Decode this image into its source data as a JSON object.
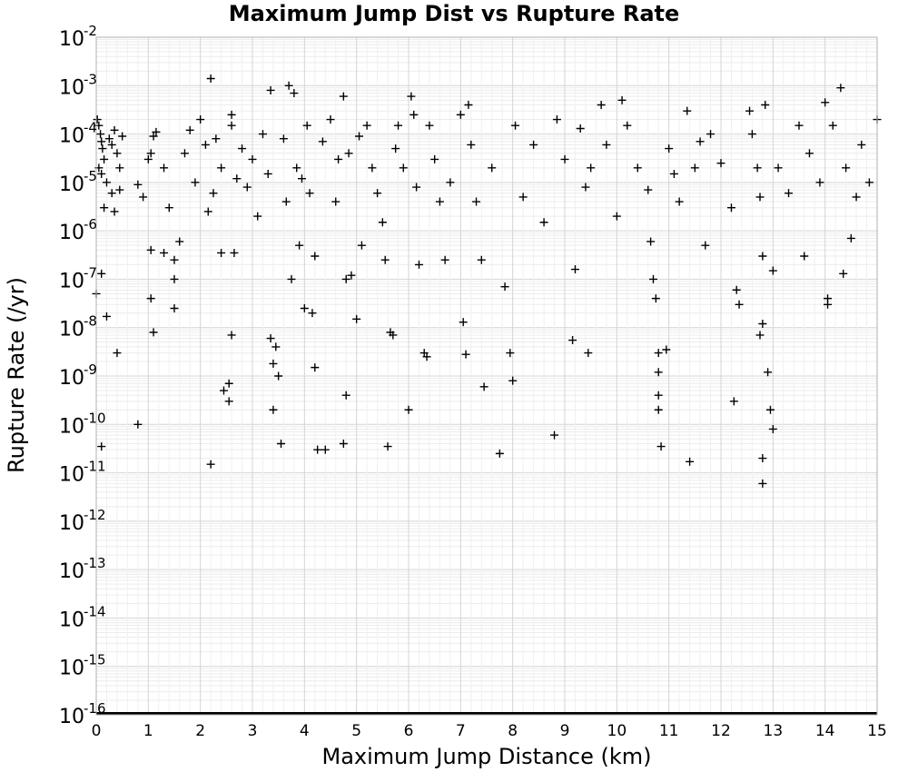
{
  "chart_data": {
    "type": "scatter",
    "title": "Maximum Jump Dist vs Rupture Rate",
    "xlabel": "Maximum Jump Distance (km)",
    "ylabel": "Rupture Rate (/yr)",
    "xlim": [
      0,
      15
    ],
    "ylim": [
      1e-16,
      0.01
    ],
    "yscale": "log",
    "grid": true,
    "marker": "plus",
    "marker_color": "#000000",
    "x_ticks": [
      "0",
      "1",
      "2",
      "3",
      "4",
      "5",
      "6",
      "7",
      "8",
      "9",
      "10",
      "11",
      "12",
      "13",
      "14",
      "15"
    ],
    "y_ticks": [
      {
        "base": "10",
        "exp": "-2"
      },
      {
        "base": "10",
        "exp": "-3"
      },
      {
        "base": "10",
        "exp": "-4"
      },
      {
        "base": "10",
        "exp": "-5"
      },
      {
        "base": "10",
        "exp": "-6"
      },
      {
        "base": "10",
        "exp": "-7"
      },
      {
        "base": "10",
        "exp": "-8"
      },
      {
        "base": "10",
        "exp": "-9"
      },
      {
        "base": "10",
        "exp": "-10"
      },
      {
        "base": "10",
        "exp": "-11"
      },
      {
        "base": "10",
        "exp": "-12"
      },
      {
        "base": "10",
        "exp": "-13"
      },
      {
        "base": "10",
        "exp": "-14"
      },
      {
        "base": "10",
        "exp": "-15"
      },
      {
        "base": "10",
        "exp": "-16"
      }
    ],
    "points": [
      [
        0.02,
        0.0002
      ],
      [
        0.05,
        0.00015
      ],
      [
        0.08,
        0.0001
      ],
      [
        0.1,
        7e-05
      ],
      [
        0.12,
        5e-05
      ],
      [
        0.15,
        3e-05
      ],
      [
        0.05,
        2e-05
      ],
      [
        0.1,
        1.5e-05
      ],
      [
        0.2,
        1e-05
      ],
      [
        0.25,
        8e-05
      ],
      [
        0.3,
        6e-05
      ],
      [
        0.35,
        0.00012
      ],
      [
        0.4,
        4e-05
      ],
      [
        0.45,
        2e-05
      ],
      [
        0.5,
        9e-05
      ],
      [
        0.0,
        5e-08
      ],
      [
        0.1,
        1.3e-07
      ],
      [
        0.2,
        1.7e-08
      ],
      [
        0.4,
        3e-09
      ],
      [
        0.1,
        3.5e-11
      ],
      [
        0.3,
        6e-06
      ],
      [
        0.45,
        7e-06
      ],
      [
        0.15,
        3e-06
      ],
      [
        0.35,
        2.5e-06
      ],
      [
        0.8,
        9e-06
      ],
      [
        0.9,
        5e-06
      ],
      [
        1.0,
        3e-05
      ],
      [
        1.05,
        4e-05
      ],
      [
        1.1,
        9e-05
      ],
      [
        1.15,
        0.00011
      ],
      [
        1.1,
        8e-09
      ],
      [
        1.05,
        4e-08
      ],
      [
        1.05,
        4e-07
      ],
      [
        0.8,
        1e-10
      ],
      [
        1.3,
        2e-05
      ],
      [
        1.4,
        3e-06
      ],
      [
        1.3,
        3.5e-07
      ],
      [
        1.5,
        2.5e-07
      ],
      [
        1.5,
        1e-07
      ],
      [
        1.5,
        2.5e-08
      ],
      [
        1.6,
        6e-07
      ],
      [
        1.7,
        4e-05
      ],
      [
        1.8,
        0.00012
      ],
      [
        1.9,
        1e-05
      ],
      [
        2.0,
        0.0002
      ],
      [
        2.1,
        6e-05
      ],
      [
        2.15,
        2.5e-06
      ],
      [
        2.2,
        0.0014
      ],
      [
        2.25,
        6e-06
      ],
      [
        2.3,
        8e-05
      ],
      [
        2.2,
        1.5e-11
      ],
      [
        2.4,
        3.5e-07
      ],
      [
        2.4,
        2e-05
      ],
      [
        2.45,
        5e-10
      ],
      [
        2.55,
        7e-10
      ],
      [
        2.55,
        3e-10
      ],
      [
        2.6,
        7e-09
      ],
      [
        2.6,
        0.00025
      ],
      [
        2.6,
        0.00015
      ],
      [
        2.65,
        3.5e-07
      ],
      [
        2.7,
        1.2e-05
      ],
      [
        2.8,
        5e-05
      ],
      [
        2.9,
        8e-06
      ],
      [
        3.0,
        3e-05
      ],
      [
        3.1,
        2e-06
      ],
      [
        3.2,
        0.0001
      ],
      [
        3.3,
        1.5e-05
      ],
      [
        3.35,
        0.0008
      ],
      [
        3.35,
        6e-09
      ],
      [
        3.4,
        1.8e-09
      ],
      [
        3.4,
        2e-10
      ],
      [
        3.45,
        4e-09
      ],
      [
        3.5,
        1e-09
      ],
      [
        3.55,
        4e-11
      ],
      [
        3.6,
        8e-05
      ],
      [
        3.65,
        4e-06
      ],
      [
        3.7,
        0.001
      ],
      [
        3.75,
        1e-07
      ],
      [
        3.8,
        0.0007
      ],
      [
        3.85,
        2e-05
      ],
      [
        3.9,
        5e-07
      ],
      [
        3.95,
        1.2e-05
      ],
      [
        4.0,
        2.5e-08
      ],
      [
        4.05,
        0.00015
      ],
      [
        4.1,
        6e-06
      ],
      [
        4.15,
        2e-08
      ],
      [
        4.2,
        3e-07
      ],
      [
        4.2,
        1.5e-09
      ],
      [
        4.25,
        3e-11
      ],
      [
        4.4,
        3e-11
      ],
      [
        4.35,
        7e-05
      ],
      [
        4.5,
        0.0002
      ],
      [
        4.6,
        4e-06
      ],
      [
        4.65,
        3e-05
      ],
      [
        4.75,
        0.0006
      ],
      [
        4.8,
        4e-10
      ],
      [
        4.75,
        4e-11
      ],
      [
        4.8,
        1e-07
      ],
      [
        4.85,
        4e-05
      ],
      [
        4.9,
        1.2e-07
      ],
      [
        5.0,
        1.5e-08
      ],
      [
        5.05,
        9e-05
      ],
      [
        5.1,
        5e-07
      ],
      [
        5.2,
        0.00015
      ],
      [
        5.3,
        2e-05
      ],
      [
        5.4,
        6e-06
      ],
      [
        5.5,
        1.5e-06
      ],
      [
        5.55,
        2.5e-07
      ],
      [
        5.6,
        3.5e-11
      ],
      [
        5.65,
        8e-09
      ],
      [
        5.7,
        7e-09
      ],
      [
        5.75,
        5e-05
      ],
      [
        5.8,
        0.00015
      ],
      [
        5.9,
        2e-05
      ],
      [
        6.0,
        2e-10
      ],
      [
        6.05,
        0.0006
      ],
      [
        6.1,
        0.00025
      ],
      [
        6.15,
        8e-06
      ],
      [
        6.2,
        2e-07
      ],
      [
        6.3,
        3e-09
      ],
      [
        6.35,
        2.5e-09
      ],
      [
        6.4,
        0.00015
      ],
      [
        6.5,
        3e-05
      ],
      [
        6.6,
        4e-06
      ],
      [
        6.7,
        2.5e-07
      ],
      [
        6.8,
        1e-05
      ],
      [
        7.0,
        0.00025
      ],
      [
        7.05,
        1.3e-08
      ],
      [
        7.1,
        2.8e-09
      ],
      [
        7.15,
        0.0004
      ],
      [
        7.2,
        6e-05
      ],
      [
        7.3,
        4e-06
      ],
      [
        7.4,
        2.5e-07
      ],
      [
        7.45,
        6e-10
      ],
      [
        7.6,
        2e-05
      ],
      [
        7.75,
        2.5e-11
      ],
      [
        7.85,
        7e-08
      ],
      [
        7.95,
        3e-09
      ],
      [
        8.0,
        8e-10
      ],
      [
        8.05,
        0.00015
      ],
      [
        8.2,
        5e-06
      ],
      [
        8.4,
        6e-05
      ],
      [
        8.6,
        1.5e-06
      ],
      [
        8.8,
        6e-11
      ],
      [
        8.85,
        0.0002
      ],
      [
        9.0,
        3e-05
      ],
      [
        9.15,
        5.5e-09
      ],
      [
        9.2,
        1.6e-07
      ],
      [
        9.3,
        0.00013
      ],
      [
        9.4,
        8e-06
      ],
      [
        9.45,
        3e-09
      ],
      [
        9.5,
        2e-05
      ],
      [
        9.7,
        0.0004
      ],
      [
        9.8,
        6e-05
      ],
      [
        10.0,
        2e-06
      ],
      [
        10.1,
        0.0005
      ],
      [
        10.2,
        0.00015
      ],
      [
        10.4,
        2e-05
      ],
      [
        10.6,
        7e-06
      ],
      [
        10.65,
        6e-07
      ],
      [
        10.7,
        1e-07
      ],
      [
        10.75,
        4e-08
      ],
      [
        10.8,
        3e-09
      ],
      [
        10.8,
        1.2e-09
      ],
      [
        10.8,
        4e-10
      ],
      [
        10.8,
        2e-10
      ],
      [
        10.85,
        3.5e-11
      ],
      [
        10.95,
        3.5e-09
      ],
      [
        11.0,
        5e-05
      ],
      [
        11.1,
        1.5e-05
      ],
      [
        11.2,
        4e-06
      ],
      [
        11.35,
        0.0003
      ],
      [
        11.4,
        1.7e-11
      ],
      [
        11.5,
        2e-05
      ],
      [
        11.6,
        7e-05
      ],
      [
        11.7,
        5e-07
      ],
      [
        11.8,
        0.0001
      ],
      [
        12.0,
        2.5e-05
      ],
      [
        12.2,
        3e-06
      ],
      [
        12.25,
        3e-10
      ],
      [
        12.3,
        6e-08
      ],
      [
        12.35,
        3e-08
      ],
      [
        12.55,
        0.0003
      ],
      [
        12.6,
        0.0001
      ],
      [
        12.7,
        2e-05
      ],
      [
        12.75,
        5e-06
      ],
      [
        12.8,
        3e-07
      ],
      [
        12.8,
        1.2e-08
      ],
      [
        12.75,
        7e-09
      ],
      [
        12.8,
        2e-11
      ],
      [
        12.8,
        6e-12
      ],
      [
        12.85,
        0.0004
      ],
      [
        12.9,
        1.2e-09
      ],
      [
        12.95,
        2e-10
      ],
      [
        13.0,
        8e-11
      ],
      [
        13.0,
        1.5e-07
      ],
      [
        13.1,
        2e-05
      ],
      [
        13.3,
        6e-06
      ],
      [
        13.5,
        0.00015
      ],
      [
        13.6,
        3e-07
      ],
      [
        13.7,
        4e-05
      ],
      [
        13.9,
        1e-05
      ],
      [
        14.0,
        0.00045
      ],
      [
        14.05,
        4e-08
      ],
      [
        14.05,
        3e-08
      ],
      [
        14.15,
        0.00015
      ],
      [
        14.3,
        0.0009
      ],
      [
        14.35,
        1.3e-07
      ],
      [
        14.4,
        2e-05
      ],
      [
        14.5,
        7e-07
      ],
      [
        14.6,
        5e-06
      ],
      [
        14.7,
        6e-05
      ],
      [
        14.85,
        1e-05
      ],
      [
        15.0,
        0.0002
      ]
    ],
    "baseline_y": 1e-16
  }
}
